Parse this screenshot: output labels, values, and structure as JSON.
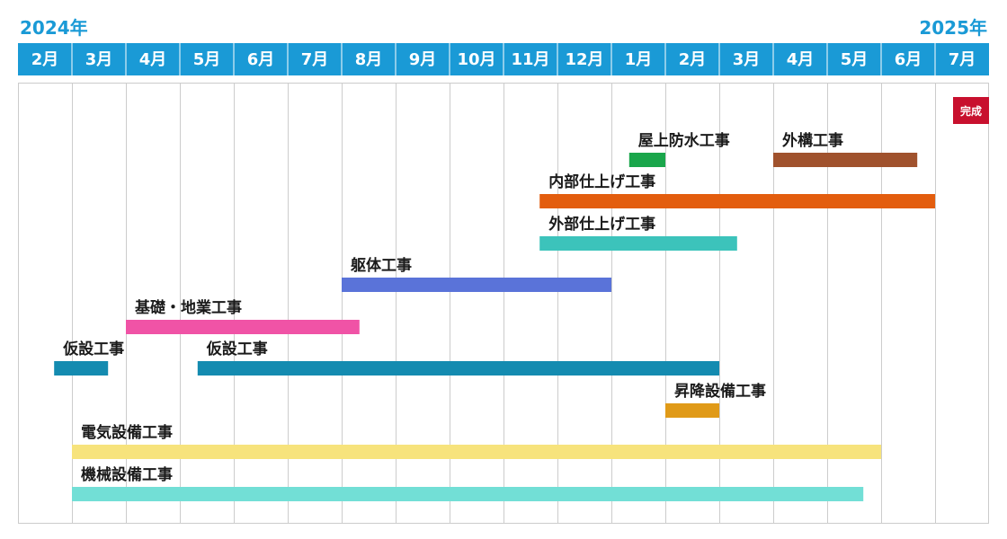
{
  "chart_data": {
    "type": "gantt",
    "years": [
      {
        "label": "2024年",
        "align": "left"
      },
      {
        "label": "2025年",
        "align": "right"
      }
    ],
    "months": [
      "2月",
      "3月",
      "4月",
      "5月",
      "6月",
      "7月",
      "8月",
      "9月",
      "10月",
      "11月",
      "12月",
      "1月",
      "2月",
      "3月",
      "4月",
      "5月",
      "6月",
      "7月"
    ],
    "completion_label": "完成",
    "tasks": [
      {
        "name": "屋上防水工事",
        "start": 11.33,
        "end": 12.0,
        "color": "#1aa64b"
      },
      {
        "name": "外構工事",
        "start": 14.0,
        "end": 16.67,
        "color": "#a0522d"
      },
      {
        "name": "内部仕上げ工事",
        "start": 9.67,
        "end": 17.0,
        "color": "#e35d0e"
      },
      {
        "name": "外部仕上げ工事",
        "start": 9.67,
        "end": 13.33,
        "color": "#3cc3bb"
      },
      {
        "name": "躯体工事",
        "start": 6.0,
        "end": 11.0,
        "color": "#5a73d9"
      },
      {
        "name": "基礎・地業工事",
        "start": 2.0,
        "end": 6.33,
        "color": "#f053a6"
      },
      {
        "name": "仮設工事",
        "start": 0.67,
        "end": 1.67,
        "color": "#148bb0"
      },
      {
        "name": "仮設工事",
        "start": 3.33,
        "end": 13.0,
        "color": "#148bb0"
      },
      {
        "name": "昇降設備工事",
        "start": 12.0,
        "end": 13.0,
        "color": "#e09a18"
      },
      {
        "name": "電気設備工事",
        "start": 1.0,
        "end": 16.0,
        "color": "#f7e37c"
      },
      {
        "name": "機械設備工事",
        "start": 1.0,
        "end": 15.67,
        "color": "#72dfd6"
      }
    ],
    "colors": {
      "header": "#1a9ad6",
      "year_text": "#1a9ad6",
      "grid": "#cccccc",
      "badge": "#c8102e"
    }
  }
}
